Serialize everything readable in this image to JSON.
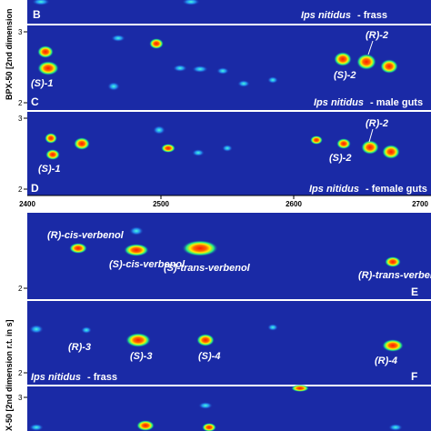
{
  "top_section": {
    "axis_title": "BPX-50 [2nd dimension",
    "x_ticks": [
      "2400",
      "2500",
      "2600",
      "2700"
    ],
    "panels": [
      {
        "letter": "B",
        "species": "Ips nitidus",
        "sample": "- frass",
        "y_ticks": []
      },
      {
        "letter": "C",
        "species": "Ips nitidus",
        "sample": "- male guts",
        "y_ticks": [
          "3",
          "2"
        ],
        "peak_labels": [
          {
            "text": "(S)-1"
          },
          {
            "text": "(S)-2"
          },
          {
            "text": "(R)-2"
          }
        ]
      },
      {
        "letter": "D",
        "species": "Ips nitidus",
        "sample": "- female guts",
        "y_ticks": [
          "3",
          "2"
        ],
        "peak_labels": [
          {
            "text": "(S)-1"
          },
          {
            "text": "(S)-2"
          },
          {
            "text": "(R)-2"
          }
        ]
      }
    ]
  },
  "bottom_section": {
    "axis_title": "X-50 [2nd dimension r.t. in s]",
    "panels": [
      {
        "letter": "E",
        "y_ticks": [
          "2"
        ],
        "peak_labels": [
          {
            "text": "(R)-cis-verbenol"
          },
          {
            "text": "(S)-cis-verbenol"
          },
          {
            "text": "(S)-trans-verbenol"
          },
          {
            "text": "(R)-trans-verbenol"
          }
        ]
      },
      {
        "letter": "F",
        "species": "Ips nitidus",
        "sample": "- frass",
        "y_ticks": [
          "2"
        ],
        "peak_labels": [
          {
            "text": "(R)-3"
          },
          {
            "text": "(S)-3"
          },
          {
            "text": "(S)-4"
          },
          {
            "text": "(R)-4"
          }
        ]
      },
      {
        "letter": "",
        "y_ticks": [
          "3"
        ]
      }
    ]
  },
  "colors": {
    "background": "#1a2aa6",
    "peak_hot": "#ff1a00",
    "peak_mid": "#ffee00",
    "peak_low": "#22ee88",
    "label": "#ffffff"
  }
}
